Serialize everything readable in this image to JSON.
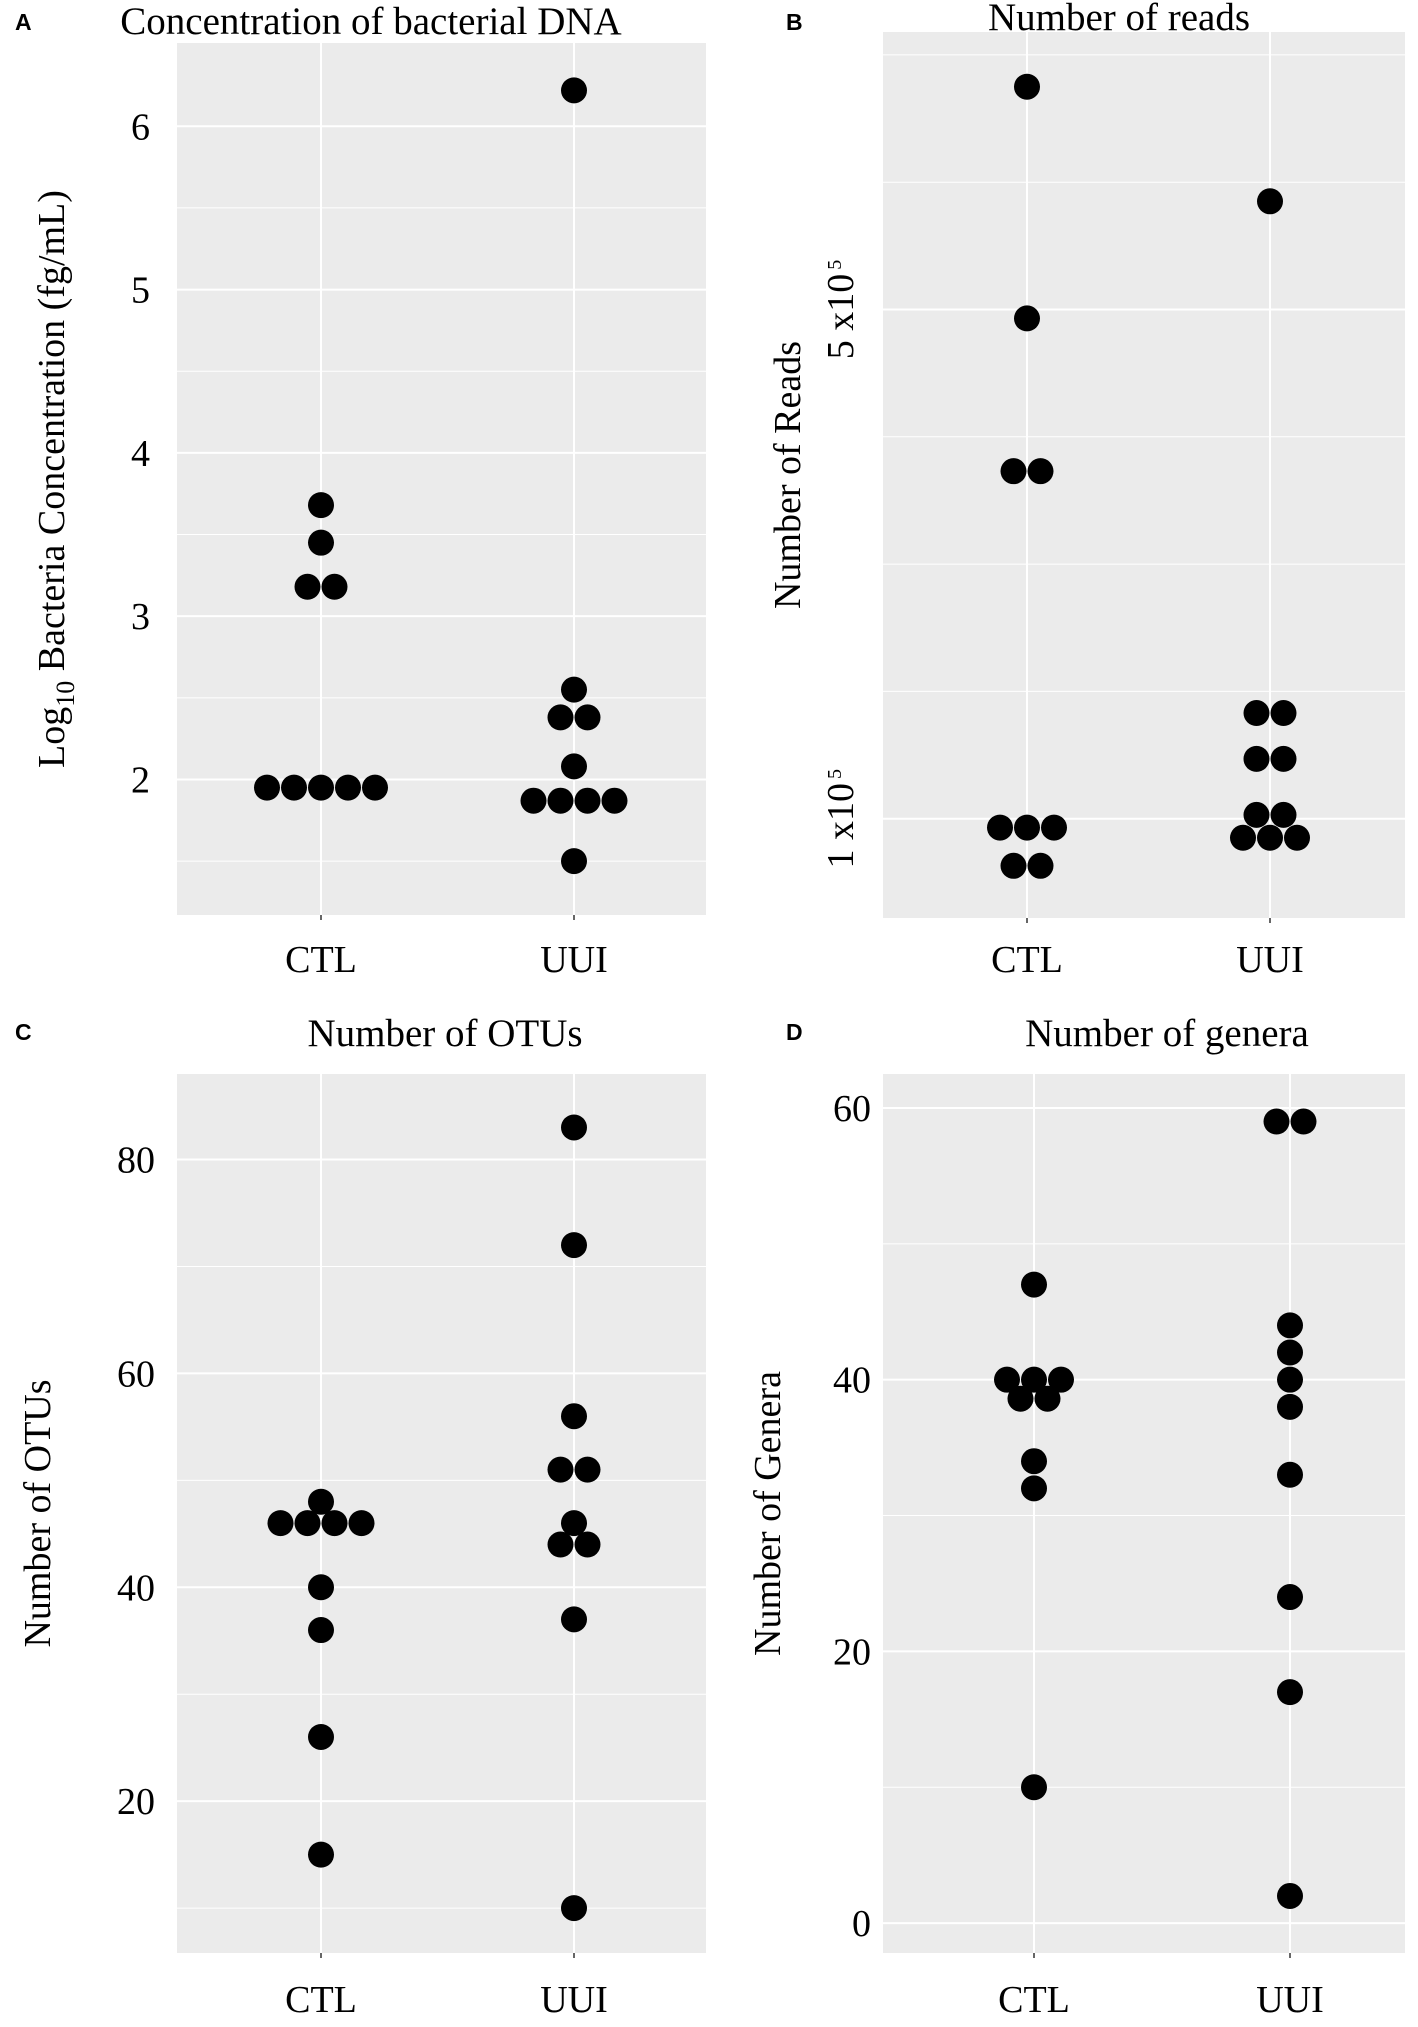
{
  "chart_data": [
    {
      "type": "scatter",
      "panel_label": "A",
      "title": "Concentration of bacterial DNA",
      "ylabel": {
        "prefix": "Log",
        "sub": "10",
        "rest": " Bacteria Concentration (fg/mL)"
      },
      "xlabel": "",
      "categories": [
        "CTL",
        "UUI"
      ],
      "ylim": [
        1.17,
        6.51
      ],
      "yticks": [
        {
          "v": 2,
          "label": "2"
        },
        {
          "v": 3,
          "label": "3"
        },
        {
          "v": 4,
          "label": "4"
        },
        {
          "v": 5,
          "label": "5"
        },
        {
          "v": 6,
          "label": "6"
        }
      ],
      "minor_ticks": [
        1.5,
        2.5,
        3.5,
        4.5,
        5.5
      ],
      "series": [
        {
          "name": "CTL",
          "points": [
            {
              "y": 3.68,
              "n": 1
            },
            {
              "y": 3.45,
              "n": 1
            },
            {
              "y": 3.18,
              "n": 2
            },
            {
              "y": 1.95,
              "n": 5
            }
          ]
        },
        {
          "name": "UUI",
          "points": [
            {
              "y": 6.22,
              "n": 1
            },
            {
              "y": 2.55,
              "n": 1
            },
            {
              "y": 2.38,
              "n": 2
            },
            {
              "y": 2.08,
              "n": 1
            },
            {
              "y": 1.87,
              "n": 4
            },
            {
              "y": 1.5,
              "n": 1
            }
          ]
        }
      ]
    },
    {
      "type": "scatter",
      "panel_label": "B",
      "title": "Number of reads",
      "ylabel": {
        "prefix": "Number of Reads",
        "sub": "",
        "rest": ""
      },
      "xlabel": "",
      "categories": [
        "CTL",
        "UUI"
      ],
      "ylim": [
        22000,
        718000
      ],
      "yticks": [
        {
          "v": 100000,
          "label": "1 x10",
          "exp": "5"
        },
        {
          "v": 500000,
          "label": "5 x10",
          "exp": "5"
        }
      ],
      "minor_ticks": [
        200000,
        300000,
        400000,
        600000,
        700000
      ],
      "rotated_ticks": true,
      "series": [
        {
          "name": "CTL",
          "points": [
            {
              "y": 675000,
              "n": 1
            },
            {
              "y": 493000,
              "n": 1
            },
            {
              "y": 373000,
              "n": 2
            },
            {
              "y": 93000,
              "n": 3
            },
            {
              "y": 63000,
              "n": 2
            }
          ]
        },
        {
          "name": "UUI",
          "points": [
            {
              "y": 585000,
              "n": 1
            },
            {
              "y": 183000,
              "n": 2
            },
            {
              "y": 147000,
              "n": 2
            },
            {
              "y": 103000,
              "n": 2
            },
            {
              "y": 85000,
              "n": 3
            }
          ]
        }
      ]
    },
    {
      "type": "scatter",
      "panel_label": "C",
      "title": "Number of OTUs",
      "ylabel": {
        "prefix": "Number of OTUs",
        "sub": "",
        "rest": ""
      },
      "xlabel": "",
      "categories": [
        "CTL",
        "UUI"
      ],
      "ylim": [
        5.8,
        88
      ],
      "yticks": [
        {
          "v": 20,
          "label": "20"
        },
        {
          "v": 40,
          "label": "40"
        },
        {
          "v": 60,
          "label": "60"
        },
        {
          "v": 80,
          "label": "80"
        }
      ],
      "minor_ticks": [
        10,
        30,
        50,
        70
      ],
      "series": [
        {
          "name": "CTL",
          "points": [
            {
              "y": 48,
              "n": 1
            },
            {
              "y": 46,
              "n": 4
            },
            {
              "y": 40,
              "n": 1
            },
            {
              "y": 36,
              "n": 1
            },
            {
              "y": 26,
              "n": 1
            },
            {
              "y": 15,
              "n": 1
            }
          ]
        },
        {
          "name": "UUI",
          "points": [
            {
              "y": 83,
              "n": 1
            },
            {
              "y": 72,
              "n": 1
            },
            {
              "y": 56,
              "n": 1
            },
            {
              "y": 51,
              "n": 2
            },
            {
              "y": 46,
              "n": 1
            },
            {
              "y": 44,
              "n": 2
            },
            {
              "y": 37,
              "n": 1
            },
            {
              "y": 10,
              "n": 1
            }
          ]
        }
      ]
    },
    {
      "type": "scatter",
      "panel_label": "D",
      "title": "Number of genera",
      "ylabel": {
        "prefix": "Number of Genera",
        "sub": "",
        "rest": ""
      },
      "xlabel": "",
      "categories": [
        "CTL",
        "UUI"
      ],
      "ylim": [
        -2.2,
        62.5
      ],
      "yticks": [
        {
          "v": 0,
          "label": "0"
        },
        {
          "v": 20,
          "label": "20"
        },
        {
          "v": 40,
          "label": "40"
        },
        {
          "v": 60,
          "label": "60"
        }
      ],
      "minor_ticks": [
        10,
        30,
        50
      ],
      "series": [
        {
          "name": "CTL",
          "points": [
            {
              "y": 47,
              "n": 1
            },
            {
              "y": 40,
              "n": 3
            },
            {
              "y": 38.6,
              "n": 2
            },
            {
              "y": 34,
              "n": 1
            },
            {
              "y": 32,
              "n": 1
            },
            {
              "y": 10,
              "n": 1
            }
          ]
        },
        {
          "name": "UUI",
          "points": [
            {
              "y": 59,
              "n": 2
            },
            {
              "y": 44,
              "n": 1
            },
            {
              "y": 42,
              "n": 1
            },
            {
              "y": 40,
              "n": 1
            },
            {
              "y": 38,
              "n": 1
            },
            {
              "y": 33,
              "n": 1
            },
            {
              "y": 24,
              "n": 1
            },
            {
              "y": 17,
              "n": 1
            },
            {
              "y": 2,
              "n": 1
            }
          ]
        }
      ]
    }
  ]
}
